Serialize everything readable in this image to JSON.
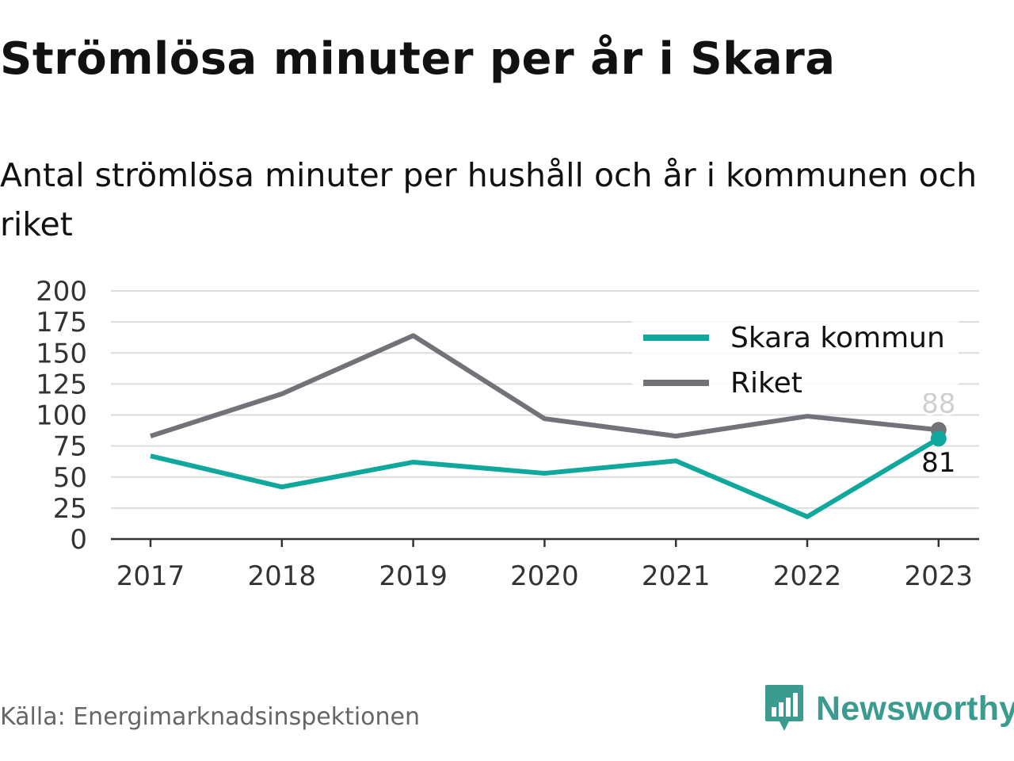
{
  "title": "Strömlösa minuter per år i Skara",
  "subtitle": "Antal strömlösa minuter per hushåll och år i kommunen och riket",
  "source": "Källa: Energimarknadsinspektionen",
  "brand": "Newsworthy",
  "colors": {
    "skara": "#10a89c",
    "riket": "#737278",
    "grid": "#dddddd",
    "axis": "#333333",
    "brand": "#3a9b8e"
  },
  "chart_data": {
    "type": "line",
    "title": "Strömlösa minuter per år i Skara",
    "subtitle": "Antal strömlösa minuter per hushåll och år i kommunen och riket",
    "x": [
      "2017",
      "2018",
      "2019",
      "2020",
      "2021",
      "2022",
      "2023"
    ],
    "yticks": [
      0,
      25,
      50,
      75,
      100,
      125,
      150,
      175,
      200
    ],
    "ylim": [
      0,
      200
    ],
    "grid": true,
    "legend_position": "top-right",
    "series": [
      {
        "name": "Skara kommun",
        "color": "#10a89c",
        "values": [
          67,
          42,
          62,
          53,
          63,
          18,
          81
        ],
        "end_label": "81"
      },
      {
        "name": "Riket",
        "color": "#737278",
        "values": [
          83,
          117,
          164,
          97,
          83,
          99,
          88
        ],
        "end_label": "88"
      }
    ]
  }
}
